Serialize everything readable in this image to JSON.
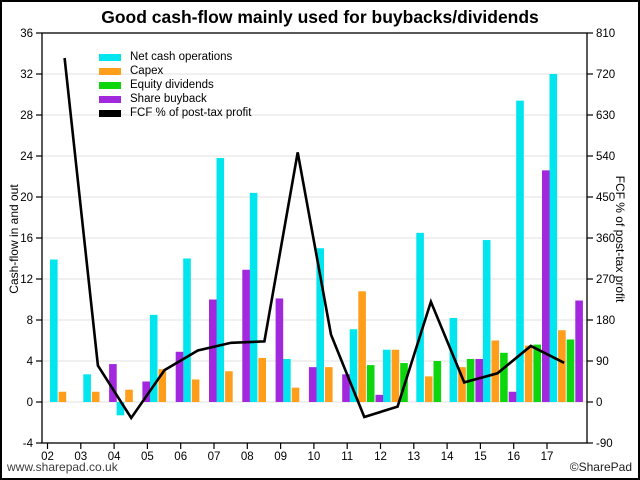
{
  "chart": {
    "title": "Good cash-flow mainly used for buybacks/dividends",
    "left_axis": {
      "title": "Cash-flow in and out",
      "min": -4,
      "max": 36,
      "step": 4
    },
    "right_axis": {
      "title": "FCF % of post-tax profit",
      "min": -90,
      "max": 810,
      "step": 90
    }
  },
  "footer": {
    "left": "www.sharepad.co.uk",
    "right": "©SharePad"
  },
  "chart_data": {
    "type": "bar",
    "title": "Good cash-flow mainly used for buybacks/dividends",
    "categories": [
      "02",
      "03",
      "04",
      "05",
      "06",
      "07",
      "08",
      "09",
      "10",
      "11",
      "12",
      "13",
      "14",
      "15",
      "16",
      "17"
    ],
    "ylim_left": [
      -4,
      36
    ],
    "ylim_right": [
      -90,
      810
    ],
    "grid": true,
    "legend_position": "top-left",
    "series": [
      {
        "name": "Net cash operations",
        "type": "bar",
        "axis": "left",
        "color": "#00E5EE",
        "values": [
          13.9,
          2.7,
          -1.3,
          8.5,
          14.0,
          23.8,
          20.4,
          4.2,
          15.0,
          7.1,
          5.1,
          16.5,
          8.2,
          15.8,
          29.4,
          32.0
        ]
      },
      {
        "name": "Capex",
        "type": "bar",
        "axis": "left",
        "color": "#FF9E1B",
        "values": [
          1.0,
          1.0,
          1.2,
          3.2,
          2.2,
          3.0,
          4.3,
          1.4,
          3.4,
          10.8,
          5.1,
          2.5,
          3.4,
          6.0,
          5.5,
          7.0
        ]
      },
      {
        "name": "Equity dividends",
        "type": "bar",
        "axis": "left",
        "color": "#0ED60E",
        "values": [
          0,
          0,
          0,
          0,
          0,
          0,
          0,
          0,
          0,
          3.6,
          3.8,
          4.0,
          4.2,
          4.8,
          5.6,
          6.1
        ]
      },
      {
        "name": "Share buyback",
        "type": "bar",
        "axis": "left",
        "color": "#A228DE",
        "values": [
          0,
          3.7,
          2.0,
          4.9,
          10.0,
          12.9,
          10.1,
          3.4,
          2.7,
          0.7,
          0,
          0,
          4.2,
          1.0,
          22.6,
          9.9
        ]
      },
      {
        "name": "FCF % of post-tax profit",
        "type": "line",
        "axis": "right",
        "color": "#000000",
        "values": [
          755,
          80,
          -35,
          70,
          113,
          130,
          133,
          548,
          148,
          -33,
          -10,
          220,
          43,
          63,
          123,
          86
        ]
      }
    ]
  }
}
